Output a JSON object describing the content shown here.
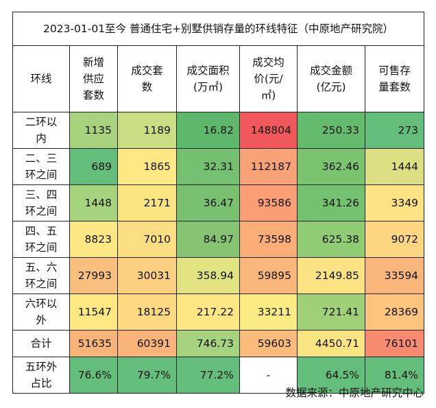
{
  "chart_data": {
    "type": "table",
    "title": "2023-01-01至今 普通住宅+别墅供销存量的环线特征（中原地产研究院）",
    "columns": [
      "环线",
      "新增供应套数",
      "成交套数",
      "成交面积(万㎡)",
      "成交均价(元/㎡)",
      "成交金额(亿元)",
      "可售存量套数"
    ],
    "header_lines": [
      [
        "环线"
      ],
      [
        "新增",
        "供应",
        "套数"
      ],
      [
        "成交套",
        "数"
      ],
      [
        "成交面积",
        "(万㎡)"
      ],
      [
        "成交均",
        "价(元/",
        "㎡)"
      ],
      [
        "成交金额",
        "(亿元)"
      ],
      [
        "可售存",
        "量套数"
      ]
    ],
    "rows": [
      {
        "label": "二环以内",
        "label_lines": [
          "二环以",
          "内"
        ],
        "values": [
          "1135",
          "1189",
          "16.82",
          "148804",
          "250.33",
          "273"
        ]
      },
      {
        "label": "二、三环之间",
        "label_lines": [
          "二、三",
          "环之间"
        ],
        "values": [
          "689",
          "1865",
          "32.31",
          "112187",
          "362.46",
          "1444"
        ]
      },
      {
        "label": "三、四环之间",
        "label_lines": [
          "三、四",
          "环之间"
        ],
        "values": [
          "1448",
          "2171",
          "36.47",
          "93586",
          "341.26",
          "3349"
        ]
      },
      {
        "label": "四、五环之间",
        "label_lines": [
          "四、五",
          "环之间"
        ],
        "values": [
          "8823",
          "7010",
          "84.97",
          "73598",
          "625.38",
          "9072"
        ]
      },
      {
        "label": "五、六环之间",
        "label_lines": [
          "五、六",
          "环之间"
        ],
        "values": [
          "27993",
          "30031",
          "358.94",
          "59895",
          "2149.85",
          "33594"
        ]
      },
      {
        "label": "六环以外",
        "label_lines": [
          "六环以",
          "外"
        ],
        "values": [
          "11547",
          "18125",
          "217.22",
          "33211",
          "721.41",
          "28369"
        ]
      }
    ],
    "total": {
      "label": "合计",
      "values": [
        "51635",
        "60391",
        "746.73",
        "59603",
        "4450.71",
        "76101"
      ]
    },
    "share": {
      "label": "五环外占比",
      "label_lines": [
        "五环外",
        "占比"
      ],
      "values": [
        "76.6%",
        "79.7%",
        "77.2%",
        "-",
        "64.5%",
        "81.4%"
      ]
    },
    "cell_colors": {
      "rows": [
        [
          "#a9d27f",
          "#c9dd83",
          "#5db86c",
          "#f0585b",
          "#64bb6d",
          "#63be7b"
        ],
        [
          "#63be7b",
          "#fde884",
          "#74bf70",
          "#f8a277",
          "#7ac470",
          "#dcdf82"
        ],
        [
          "#a6d47e",
          "#fbe583",
          "#79c171",
          "#f99e75",
          "#74c270",
          "#fde383"
        ],
        [
          "#fde884",
          "#fcde82",
          "#86c473",
          "#fbad78",
          "#8fcc74",
          "#fcd681"
        ],
        [
          "#f9c07d",
          "#fbd080",
          "#e1e282",
          "#fbb77b",
          "#fbe283",
          "#fab57a"
        ],
        [
          "#fde884",
          "#fdd982",
          "#fde784",
          "#faeb84",
          "#9fcf77",
          "#fcc47d"
        ]
      ],
      "total": [
        "#f8b479",
        "#f9b47a",
        "#a7d27e",
        "#fbbb7b",
        "#fbe583",
        "#f88a6f"
      ],
      "share": [
        "#63be7b",
        "#63be7b",
        "#63be7b",
        "#ffffff",
        "#63be7b",
        "#63be7b"
      ],
      "label": "#ffffff"
    },
    "source": "数据来源：中原地产研究中心"
  }
}
